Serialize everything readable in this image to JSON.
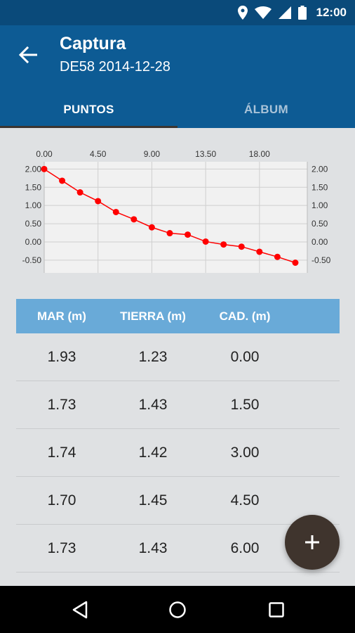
{
  "status_bar": {
    "time": "12:00",
    "icons": [
      "location-icon",
      "wifi-icon",
      "signal-icon",
      "battery-icon"
    ]
  },
  "app_bar": {
    "title": "Captura",
    "subtitle": "DE58 2014-12-28",
    "tabs": [
      {
        "label": "PUNTOS",
        "active": true
      },
      {
        "label": "ÁLBUM",
        "active": false
      }
    ]
  },
  "chart_data": {
    "type": "line",
    "x": [
      0.0,
      1.5,
      3.0,
      4.5,
      6.0,
      7.5,
      9.0,
      10.5,
      12.0,
      13.5,
      15.0,
      16.5,
      18.0,
      19.5,
      21.0
    ],
    "series": [
      {
        "values": [
          2.0,
          1.68,
          1.36,
          1.12,
          0.82,
          0.62,
          0.4,
          0.24,
          0.2,
          0.01,
          -0.07,
          -0.13,
          -0.27,
          -0.41,
          -0.57
        ]
      }
    ],
    "x_ticks": [
      "0.00",
      "4.50",
      "9.00",
      "13.50",
      "18.00"
    ],
    "y_ticks": [
      "2.00",
      "1.50",
      "1.00",
      "0.50",
      "0.00",
      "-0.50"
    ],
    "xlim": [
      0,
      22
    ],
    "ylim": [
      -0.85,
      2.2
    ],
    "grid": true,
    "color": "#ff0000"
  },
  "table": {
    "headers": [
      "MAR (m)",
      "TIERRA (m)",
      "CAD. (m)"
    ],
    "rows": [
      [
        "1.93",
        "1.23",
        "0.00"
      ],
      [
        "1.73",
        "1.43",
        "1.50"
      ],
      [
        "1.74",
        "1.42",
        "3.00"
      ],
      [
        "1.70",
        "1.45",
        "4.50"
      ],
      [
        "1.73",
        "1.43",
        "6.00"
      ]
    ]
  },
  "fab": {
    "icon": "plus-icon"
  },
  "colors": {
    "status_bar": "#0a4a7a",
    "app_bar": "#0d5b94",
    "table_header": "#69aad8",
    "fab": "#3f342d"
  }
}
